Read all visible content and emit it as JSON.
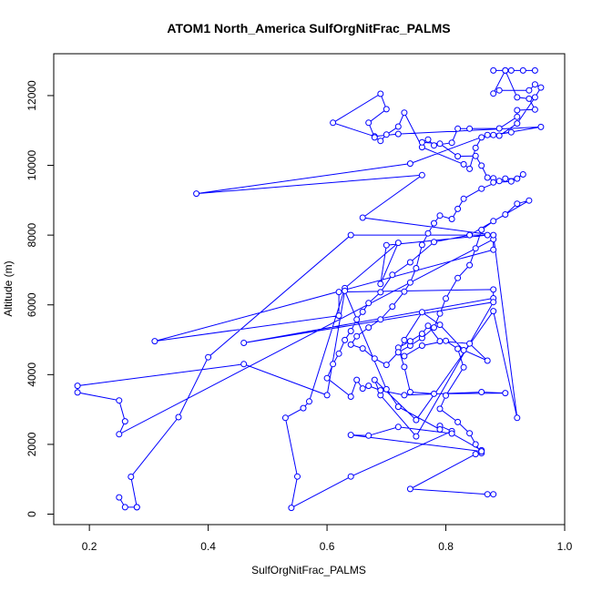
{
  "chart_data": {
    "type": "line",
    "title": "ATOM1 North_America SulfOrgNitFrac_PALMS",
    "xlabel": "SulfOrgNitFrac_PALMS",
    "ylabel": "Altitude (m)",
    "xlim": [
      0.14,
      1.0
    ],
    "ylim": [
      -300,
      13200
    ],
    "x_ticks": [
      0.2,
      0.4,
      0.6,
      0.8,
      1.0
    ],
    "x_tick_labels": [
      "0.2",
      "0.4",
      "0.6",
      "0.8",
      "1.0"
    ],
    "y_ticks": [
      0,
      2000,
      4000,
      6000,
      8000,
      10000,
      12000
    ],
    "y_tick_labels": [
      "0",
      "2000",
      "4000",
      "6000",
      "8000",
      "10000",
      "12000"
    ],
    "grid": false,
    "marker": "open-circle",
    "color": "#0000ff",
    "series": [
      {
        "points": [
          [
            0.25,
            480
          ],
          [
            0.26,
            200
          ],
          [
            0.28,
            200
          ],
          [
            0.28,
            200
          ],
          [
            0.27,
            1070
          ],
          [
            0.35,
            2780
          ],
          [
            0.4,
            4500
          ],
          [
            0.64,
            8000
          ],
          [
            0.87,
            8000
          ],
          [
            0.7,
            7710
          ],
          [
            0.69,
            6600
          ],
          [
            0.72,
            7780
          ],
          [
            0.63,
            6480
          ],
          [
            0.57,
            3230
          ],
          [
            0.56,
            3040
          ],
          [
            0.53,
            2760
          ],
          [
            0.55,
            1080
          ],
          [
            0.54,
            180
          ],
          [
            0.64,
            1080
          ],
          [
            0.81,
            2380
          ],
          [
            0.79,
            2530
          ],
          [
            0.79,
            2430
          ],
          [
            0.72,
            3080
          ],
          [
            0.7,
            3580
          ],
          [
            0.63,
            6400
          ],
          [
            0.6,
            3410
          ],
          [
            0.46,
            4300
          ],
          [
            0.18,
            3680
          ],
          [
            0.18,
            3490
          ],
          [
            0.25,
            3260
          ],
          [
            0.26,
            2660
          ],
          [
            0.25,
            2290
          ],
          [
            0.88,
            7880
          ],
          [
            0.88,
            7580
          ],
          [
            0.31,
            4960
          ],
          [
            0.62,
            5690
          ],
          [
            0.62,
            6370
          ],
          [
            0.88,
            6440
          ],
          [
            0.88,
            6190
          ],
          [
            0.46,
            4910
          ],
          [
            0.88,
            6080
          ],
          [
            0.75,
            2230
          ],
          [
            0.69,
            3410
          ],
          [
            0.68,
            3850
          ],
          [
            0.75,
            2700
          ],
          [
            0.88,
            5820
          ],
          [
            0.92,
            2760
          ],
          [
            0.88,
            8000
          ],
          [
            0.66,
            8500
          ],
          [
            0.76,
            9720
          ],
          [
            0.38,
            9190
          ],
          [
            0.74,
            10050
          ],
          [
            0.87,
            10870
          ],
          [
            0.91,
            10950
          ],
          [
            0.88,
            10870
          ],
          [
            0.96,
            11100
          ],
          [
            0.72,
            10900
          ],
          [
            0.68,
            10830
          ],
          [
            0.61,
            11220
          ],
          [
            0.69,
            12050
          ],
          [
            0.7,
            11610
          ],
          [
            0.67,
            11220
          ],
          [
            0.68,
            10800
          ],
          [
            0.69,
            10700
          ],
          [
            0.7,
            10880
          ],
          [
            0.72,
            11110
          ],
          [
            0.73,
            11510
          ],
          [
            0.76,
            10520
          ],
          [
            0.83,
            10030
          ],
          [
            0.84,
            9900
          ],
          [
            0.85,
            10500
          ],
          [
            0.86,
            10800
          ],
          [
            0.89,
            10850
          ],
          [
            0.92,
            11200
          ],
          [
            0.95,
            11950
          ],
          [
            0.96,
            12230
          ],
          [
            0.95,
            12320
          ],
          [
            0.94,
            12150
          ],
          [
            0.89,
            12150
          ],
          [
            0.88,
            12060
          ],
          [
            0.9,
            12720
          ],
          [
            0.88,
            12720
          ],
          [
            0.93,
            12720
          ],
          [
            0.95,
            12720
          ],
          [
            0.91,
            12720
          ],
          [
            0.9,
            12720
          ],
          [
            0.92,
            11950
          ],
          [
            0.94,
            11910
          ],
          [
            0.95,
            11600
          ],
          [
            0.92,
            11580
          ],
          [
            0.92,
            11390
          ],
          [
            0.89,
            11060
          ],
          [
            0.84,
            11050
          ],
          [
            0.82,
            11050
          ],
          [
            0.81,
            10650
          ],
          [
            0.78,
            10570
          ],
          [
            0.77,
            10740
          ],
          [
            0.76,
            10660
          ],
          [
            0.79,
            10620
          ],
          [
            0.82,
            10260
          ],
          [
            0.85,
            10270
          ],
          [
            0.86,
            9990
          ],
          [
            0.87,
            9650
          ],
          [
            0.88,
            9630
          ],
          [
            0.88,
            9510
          ],
          [
            0.91,
            9540
          ],
          [
            0.93,
            9740
          ],
          [
            0.92,
            9620
          ],
          [
            0.9,
            9620
          ],
          [
            0.89,
            9550
          ],
          [
            0.86,
            9330
          ],
          [
            0.83,
            9040
          ],
          [
            0.82,
            8750
          ],
          [
            0.81,
            8460
          ],
          [
            0.79,
            8560
          ],
          [
            0.78,
            8340
          ],
          [
            0.77,
            8050
          ],
          [
            0.76,
            7720
          ],
          [
            0.75,
            7050
          ],
          [
            0.74,
            6640
          ],
          [
            0.73,
            6380
          ],
          [
            0.71,
            5950
          ],
          [
            0.69,
            5580
          ],
          [
            0.67,
            5350
          ],
          [
            0.65,
            5100
          ],
          [
            0.64,
            4860
          ],
          [
            0.66,
            4750
          ],
          [
            0.68,
            4460
          ],
          [
            0.7,
            4280
          ],
          [
            0.72,
            4640
          ],
          [
            0.74,
            4830
          ],
          [
            0.76,
            5050
          ],
          [
            0.78,
            5350
          ],
          [
            0.79,
            5750
          ],
          [
            0.8,
            6180
          ],
          [
            0.82,
            6770
          ],
          [
            0.84,
            7140
          ],
          [
            0.85,
            7620
          ],
          [
            0.86,
            8150
          ],
          [
            0.88,
            8400
          ],
          [
            0.9,
            8590
          ],
          [
            0.92,
            8900
          ],
          [
            0.94,
            8990
          ],
          [
            0.84,
            8000
          ],
          [
            0.78,
            7800
          ],
          [
            0.74,
            7220
          ],
          [
            0.71,
            6860
          ],
          [
            0.69,
            6360
          ],
          [
            0.67,
            6050
          ],
          [
            0.66,
            5800
          ],
          [
            0.65,
            5580
          ],
          [
            0.64,
            5250
          ],
          [
            0.63,
            4990
          ],
          [
            0.62,
            4600
          ],
          [
            0.61,
            4300
          ],
          [
            0.6,
            3900
          ],
          [
            0.64,
            3370
          ],
          [
            0.65,
            3850
          ],
          [
            0.66,
            3600
          ],
          [
            0.67,
            3680
          ],
          [
            0.69,
            3550
          ],
          [
            0.73,
            3410
          ],
          [
            0.86,
            3500
          ],
          [
            0.9,
            3470
          ],
          [
            0.78,
            3450
          ],
          [
            0.74,
            3500
          ],
          [
            0.73,
            4220
          ],
          [
            0.72,
            4770
          ],
          [
            0.74,
            4960
          ],
          [
            0.76,
            5170
          ],
          [
            0.77,
            5400
          ],
          [
            0.79,
            4960
          ],
          [
            0.84,
            4890
          ],
          [
            0.87,
            4400
          ],
          [
            0.83,
            4700
          ],
          [
            0.79,
            5430
          ],
          [
            0.76,
            5790
          ],
          [
            0.73,
            4990
          ],
          [
            0.72,
            4640
          ],
          [
            0.73,
            4530
          ],
          [
            0.76,
            4830
          ],
          [
            0.8,
            4970
          ],
          [
            0.82,
            4740
          ],
          [
            0.83,
            4210
          ],
          [
            0.8,
            3400
          ],
          [
            0.79,
            3020
          ],
          [
            0.82,
            2640
          ],
          [
            0.84,
            2320
          ],
          [
            0.85,
            2000
          ],
          [
            0.86,
            1750
          ],
          [
            0.86,
            1830
          ],
          [
            0.81,
            2310
          ],
          [
            0.72,
            2500
          ],
          [
            0.67,
            2250
          ],
          [
            0.64,
            2270
          ],
          [
            0.86,
            1800
          ],
          [
            0.85,
            1720
          ],
          [
            0.74,
            720
          ],
          [
            0.87,
            570
          ],
          [
            0.88,
            570
          ]
        ]
      }
    ]
  }
}
